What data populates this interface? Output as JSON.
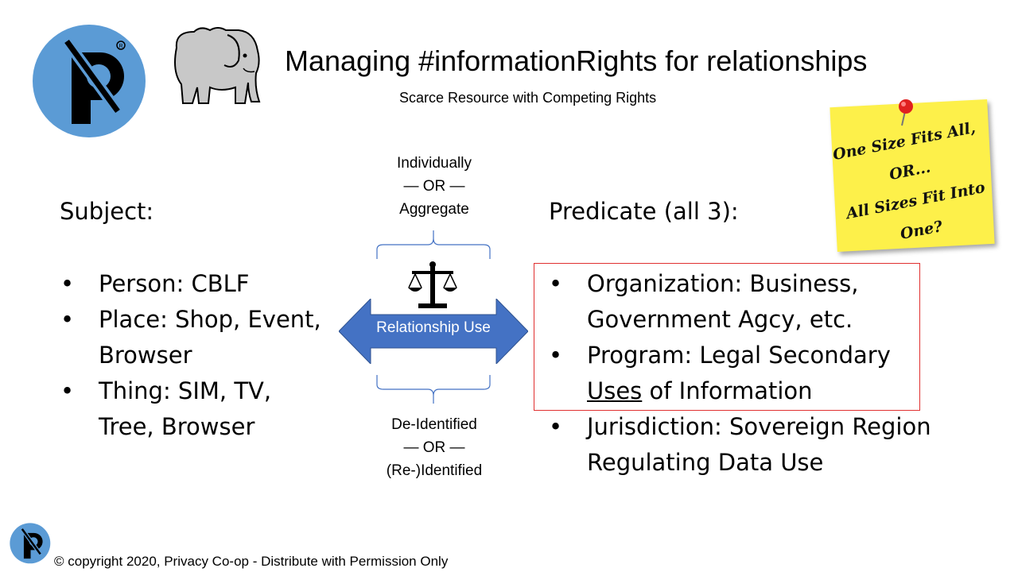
{
  "title": "Managing #informationRights for relationships",
  "subtitle": "Scarce Resource with Competing Rights",
  "subject": {
    "heading": "Subject:",
    "items": [
      [
        "Person: CBLF"
      ],
      [
        "Place: Shop, Event,",
        "Browser"
      ],
      [
        "Thing: SIM, TV,",
        "Tree, Browser"
      ]
    ]
  },
  "center": {
    "top_lines": [
      "Individually",
      "— OR —",
      "Aggregate"
    ],
    "arrow_label": "Relationship Use",
    "bottom_lines": [
      "De-Identified",
      "— OR —",
      "(Re-)Identified"
    ]
  },
  "predicate": {
    "heading": "Predicate (all 3):",
    "item1": [
      "Organization: Business,",
      "Government Agcy, etc."
    ],
    "item2_line1": "Program: Legal Secondary",
    "item2_underlined": "Uses",
    "item2_rest": " of Information",
    "item3": [
      "Jurisdiction: Sovereign Region",
      "Regulating Data Use"
    ]
  },
  "sticky_note": [
    "One Size Fits All,",
    "OR...",
    "All Sizes Fit Into",
    "One?"
  ],
  "footer": "© copyright 2020, Privacy Co-op - Distribute with Permission Only",
  "colors": {
    "logo_blue": "#5b9bd5",
    "arrow_blue": "#4472c4",
    "red_box": "#e03030",
    "note_yellow": "#fdf04a",
    "elephant_gray": "#c8c8c8"
  },
  "icons": [
    "privacy-coop-logo-icon",
    "elephant-icon",
    "scales-of-justice-icon",
    "push-pin-icon"
  ]
}
